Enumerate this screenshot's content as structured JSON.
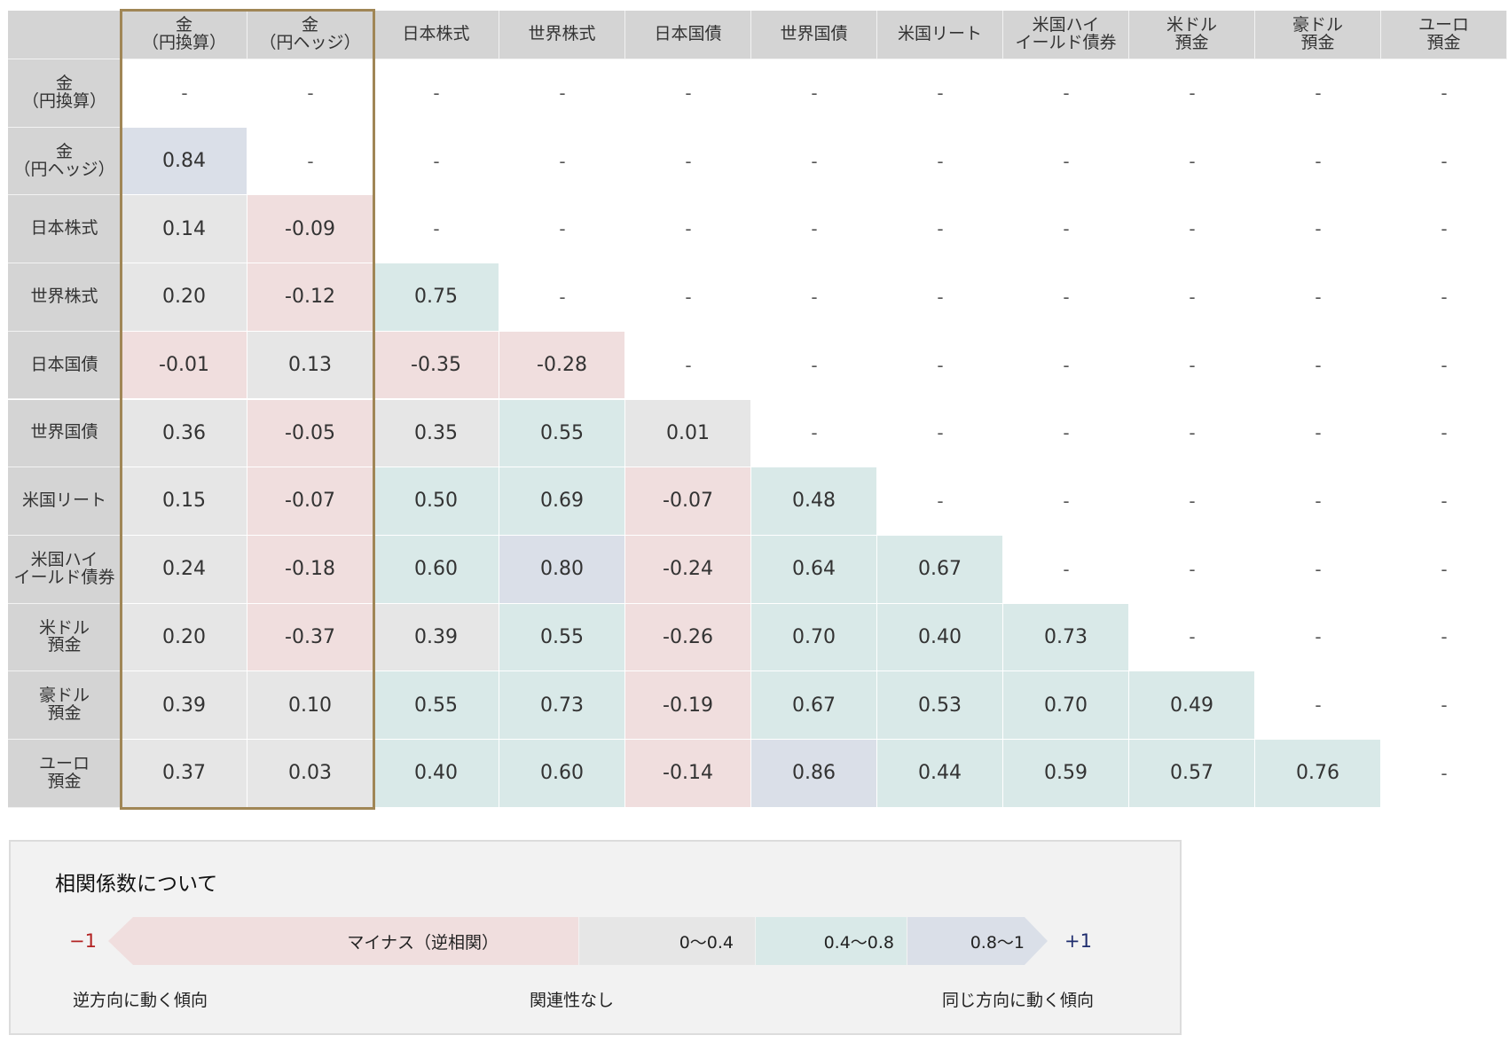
{
  "chart_data": {
    "type": "table",
    "labels": [
      "金\n（円換算）",
      "金\n（円ヘッジ）",
      "日本株式",
      "世界株式",
      "日本国債",
      "世界国債",
      "米国リート",
      "米国ハイ\nイールド債券",
      "米ドル\n預金",
      "豪ドル\n預金",
      "ユーロ\n預金"
    ],
    "column_labels": [
      "金\n（円換算）",
      "金\n（円ヘッジ）",
      "日本株式",
      "世界株式",
      "日本国債",
      "世界国債",
      "米国リート",
      "米国ハイ\nイールド債券",
      "米ドル\n預金",
      "豪ドル\n預金",
      "ユーロ\n預金"
    ],
    "empty_mark": "-",
    "rows": [
      [
        null,
        null,
        null,
        null,
        null,
        null,
        null,
        null,
        null,
        null,
        null
      ],
      [
        0.84,
        null,
        null,
        null,
        null,
        null,
        null,
        null,
        null,
        null,
        null
      ],
      [
        0.14,
        -0.09,
        null,
        null,
        null,
        null,
        null,
        null,
        null,
        null,
        null
      ],
      [
        0.2,
        -0.12,
        0.75,
        null,
        null,
        null,
        null,
        null,
        null,
        null,
        null
      ],
      [
        -0.01,
        0.13,
        -0.35,
        -0.28,
        null,
        null,
        null,
        null,
        null,
        null,
        null
      ],
      [
        0.36,
        -0.05,
        0.35,
        0.55,
        0.01,
        null,
        null,
        null,
        null,
        null,
        null
      ],
      [
        0.15,
        -0.07,
        0.5,
        0.69,
        -0.07,
        0.48,
        null,
        null,
        null,
        null,
        null
      ],
      [
        0.24,
        -0.18,
        0.6,
        0.8,
        -0.24,
        0.64,
        0.67,
        null,
        null,
        null,
        null
      ],
      [
        0.2,
        -0.37,
        0.39,
        0.55,
        -0.26,
        0.7,
        0.4,
        0.73,
        null,
        null,
        null
      ],
      [
        0.39,
        0.1,
        0.55,
        0.73,
        -0.19,
        0.67,
        0.53,
        0.7,
        0.49,
        null,
        null
      ],
      [
        0.37,
        0.03,
        0.4,
        0.6,
        -0.14,
        0.86,
        0.44,
        0.59,
        0.57,
        0.76,
        null
      ]
    ],
    "highlighted_columns": [
      0,
      1
    ],
    "colors": {
      "negative": "#f0dede",
      "weak": "#e6e6e6",
      "moderate": "#d9e9e8",
      "strong": "#dadfe8",
      "header": "#d4d4d4",
      "highlight_border": "#a08656"
    }
  },
  "legend": {
    "title": "相関係数について",
    "min_label": "−1",
    "max_label": "+1",
    "segments": {
      "negative": "マイナス（逆相関）",
      "low": "0〜0.4",
      "mid": "0.4〜0.8",
      "high": "0.8〜1"
    },
    "caption_left": "逆方向に動く傾向",
    "caption_middle": "関連性なし",
    "caption_right": "同じ方向に動く傾向"
  }
}
